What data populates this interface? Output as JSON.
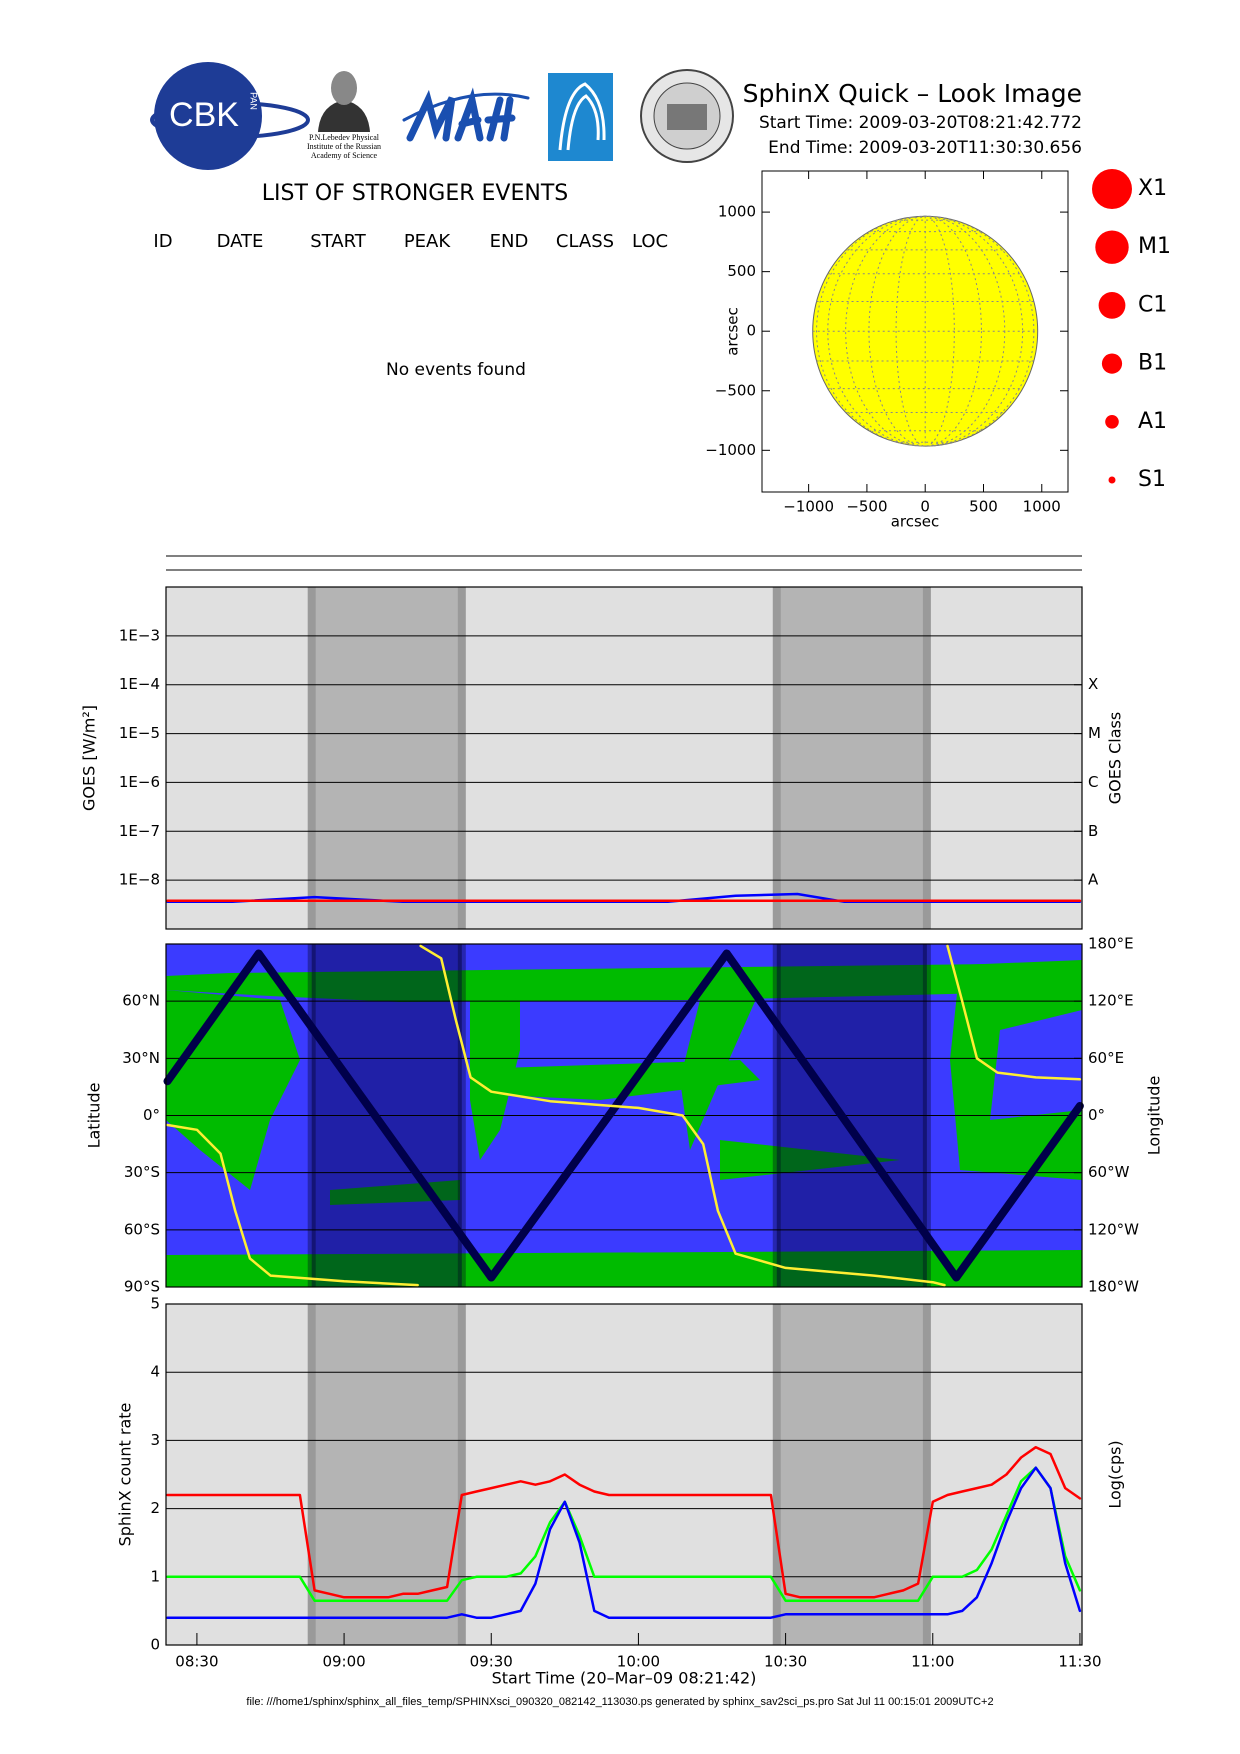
{
  "header": {
    "title": "SphinX Quick – Look Image",
    "start_time": "Start Time: 2009-03-20T08:21:42.772",
    "end_time": "End Time: 2009-03-20T11:30:30.656",
    "logos": {
      "cbk": "CBK",
      "pan": "PAN",
      "lebedev": [
        "P.N.Lebedev Physical",
        "Institute of the Russian",
        "Academy of Science"
      ]
    }
  },
  "events": {
    "title": "LIST OF STRONGER EVENTS",
    "columns": [
      "ID",
      "DATE",
      "START",
      "PEAK",
      "END",
      "CLASS",
      "LOC"
    ],
    "message": "No events found"
  },
  "footer": "file: ///home1/sphinx/sphinx_all_files_temp/SPHINXsci_090320_082142_113030.ps generated by sphinx_sav2sci_ps.pro Sat Jul 11 00:15:01 2009UTC+2",
  "chart_data": [
    {
      "type": "disk",
      "x_label": "arcsec",
      "y_label": "arcsec",
      "xlim": [
        -1400,
        1225
      ],
      "ylim": [
        -1350,
        1345
      ],
      "xticks": [
        {
          "value": -1000,
          "label": "−1000"
        },
        {
          "value": -500,
          "label": "−500"
        },
        0,
        500,
        1000
      ],
      "yticks": [
        1000,
        500,
        0,
        {
          "value": -500,
          "label": "−500"
        },
        {
          "value": -1000,
          "label": "−1000"
        }
      ],
      "disk_radius": 965,
      "disk_color": "#ffff00",
      "heliographic_grid": true,
      "legend": {
        "labels": [
          "X1",
          "M1",
          "C1",
          "B1",
          "A1",
          "S1"
        ],
        "color": "#ff0000"
      }
    },
    {
      "type": "line",
      "y_label": "GOES [W/m²]",
      "y2_label": "GOES Class",
      "log_scale": true,
      "grid": true,
      "xlim": [
        8.395,
        11.507
      ],
      "ylim": [
        1e-09,
        0.01
      ],
      "yticks": [
        {
          "value": 0.001,
          "label": "1E−3"
        },
        {
          "value": 0.0001,
          "label": "1E−4"
        },
        {
          "value": 1e-05,
          "label": "1E−5"
        },
        {
          "value": 1e-06,
          "label": "1E−6"
        },
        {
          "value": 1e-07,
          "label": "1E−7"
        },
        {
          "value": 1e-08,
          "label": "1E−8"
        }
      ],
      "y2lim": [
        1e-09,
        0.01
      ],
      "y2ticks": [
        {
          "value": 0.0001,
          "label": "X"
        },
        {
          "value": 1e-05,
          "label": "M"
        },
        {
          "value": 1e-06,
          "label": "C"
        },
        {
          "value": 1e-07,
          "label": "B"
        },
        {
          "value": 1e-08,
          "label": "A"
        }
      ],
      "shaded_intervals": [
        [
          8.89,
          9.4
        ],
        [
          10.47,
          10.98
        ]
      ],
      "x": [
        8.4,
        8.62,
        8.9,
        9.2,
        9.5,
        9.8,
        10.1,
        10.33,
        10.54,
        10.7,
        10.95,
        11.2,
        11.5
      ],
      "series": [
        {
          "color": "#0000ff",
          "values": [
            3.6e-09,
            3.6e-09,
            4.5e-09,
            3.6e-09,
            3.6e-09,
            3.6e-09,
            3.6e-09,
            4.8e-09,
            5.2e-09,
            3.6e-09,
            3.6e-09,
            3.6e-09,
            3.6e-09
          ]
        },
        {
          "color": "#ff0000",
          "values": [
            3.8e-09,
            3.8e-09,
            3.8e-09,
            3.8e-09,
            3.8e-09,
            3.8e-09,
            3.8e-09,
            3.8e-09,
            3.8e-09,
            3.8e-09,
            3.8e-09,
            3.8e-09,
            3.8e-09
          ]
        }
      ]
    },
    {
      "type": "orbit",
      "y_label": "Latitude",
      "y2_label": "Longitude",
      "grid": true,
      "xlim": [
        8.395,
        11.507
      ],
      "ylim": [
        -90,
        90
      ],
      "yticks": [
        {
          "value": 60,
          "label": "60°N"
        },
        {
          "value": 30,
          "label": "30°N"
        },
        {
          "value": 0,
          "label": "0°"
        },
        {
          "value": -30,
          "label": "30°S"
        },
        {
          "value": -60,
          "label": "60°S"
        },
        {
          "value": -90,
          "label": "90°S"
        }
      ],
      "y2lim": [
        -180,
        180
      ],
      "y2ticks": [
        {
          "value": 180,
          "label": "180°E"
        },
        {
          "value": 120,
          "label": "120°E"
        },
        {
          "value": 60,
          "label": "60°E"
        },
        {
          "value": 0,
          "label": "0°"
        },
        {
          "value": -60,
          "label": "60°W"
        },
        {
          "value": -120,
          "label": "120°W"
        },
        {
          "value": -180,
          "label": "180°W"
        }
      ],
      "shaded_intervals": [
        [
          8.89,
          9.4
        ],
        [
          10.47,
          10.98
        ]
      ],
      "series": [
        {
          "color": "#00004a",
          "x": [
            8.4,
            8.71,
            9.5,
            10.3,
            11.08,
            11.5
          ],
          "values": [
            18,
            85,
            -85,
            85,
            -85,
            5
          ]
        },
        {
          "color": "#ffee33",
          "axis": "y2",
          "x": [
            8.4,
            8.5,
            8.58,
            8.63,
            8.68,
            8.75,
            9.0,
            9.25,
            9.255,
            9.26,
            9.33,
            9.38,
            9.43,
            9.5,
            9.7,
            10.0,
            10.15,
            10.22,
            10.27,
            10.33,
            10.5,
            10.8,
            11.0,
            11.04,
            11.045,
            11.05,
            11.1,
            11.15,
            11.22,
            11.35,
            11.5
          ],
          "values": [
            -10,
            -15,
            -40,
            -100,
            -150,
            -168,
            -174,
            -178,
            null,
            178,
            165,
            100,
            40,
            25,
            15,
            8,
            0,
            -30,
            -100,
            -145,
            -160,
            -168,
            -175,
            -178,
            null,
            178,
            120,
            60,
            45,
            40,
            38
          ]
        }
      ]
    },
    {
      "type": "line",
      "y_label": "SphinX count rate",
      "y2_label": "Log(cps)",
      "x_label": "Start Time (20–Mar–09 08:21:42)",
      "grid": true,
      "xlim": [
        8.395,
        11.507
      ],
      "ylim": [
        0,
        5
      ],
      "yticks": [
        0,
        1,
        2,
        3,
        4,
        5
      ],
      "xticks": [
        {
          "value": 8.5,
          "label": "08:30"
        },
        {
          "value": 9,
          "label": "09:00"
        },
        {
          "value": 9.5,
          "label": "09:30"
        },
        {
          "value": 10,
          "label": "10:00"
        },
        {
          "value": 10.5,
          "label": "10:30"
        },
        {
          "value": 11,
          "label": "11:00"
        },
        {
          "value": 11.5,
          "label": "11:30"
        }
      ],
      "shaded_intervals": [
        [
          8.89,
          9.4
        ],
        [
          10.47,
          10.98
        ]
      ],
      "x": [
        8.4,
        8.45,
        8.5,
        8.55,
        8.6,
        8.65,
        8.7,
        8.75,
        8.8,
        8.85,
        8.9,
        8.95,
        9.0,
        9.05,
        9.1,
        9.15,
        9.2,
        9.25,
        9.3,
        9.35,
        9.4,
        9.45,
        9.5,
        9.55,
        9.6,
        9.65,
        9.7,
        9.75,
        9.8,
        9.85,
        9.9,
        9.95,
        10.0,
        10.05,
        10.1,
        10.15,
        10.2,
        10.25,
        10.3,
        10.35,
        10.4,
        10.45,
        10.5,
        10.55,
        10.6,
        10.65,
        10.7,
        10.75,
        10.8,
        10.85,
        10.9,
        10.95,
        11.0,
        11.05,
        11.1,
        11.15,
        11.2,
        11.25,
        11.3,
        11.35,
        11.4,
        11.45,
        11.5
      ],
      "series": [
        {
          "color": "#00ff00",
          "values": [
            1.0,
            1.0,
            1.0,
            1.0,
            1.0,
            1.0,
            1.0,
            1.0,
            1.0,
            1.0,
            0.65,
            0.65,
            0.65,
            0.65,
            0.65,
            0.65,
            0.65,
            0.65,
            0.65,
            0.65,
            0.95,
            1.0,
            1.0,
            1.0,
            1.05,
            1.3,
            1.8,
            2.1,
            1.6,
            1.0,
            1.0,
            1.0,
            1.0,
            1.0,
            1.0,
            1.0,
            1.0,
            1.0,
            1.0,
            1.0,
            1.0,
            1.0,
            0.65,
            0.65,
            0.65,
            0.65,
            0.65,
            0.65,
            0.65,
            0.65,
            0.65,
            0.65,
            1.0,
            1.0,
            1.0,
            1.1,
            1.4,
            1.9,
            2.4,
            2.6,
            2.3,
            1.3,
            0.8
          ]
        },
        {
          "color": "#0000ff",
          "values": [
            0.4,
            0.4,
            0.4,
            0.4,
            0.4,
            0.4,
            0.4,
            0.4,
            0.4,
            0.4,
            0.4,
            0.4,
            0.4,
            0.4,
            0.4,
            0.4,
            0.4,
            0.4,
            0.4,
            0.4,
            0.45,
            0.4,
            0.4,
            0.45,
            0.5,
            0.9,
            1.7,
            2.1,
            1.5,
            0.5,
            0.4,
            0.4,
            0.4,
            0.4,
            0.4,
            0.4,
            0.4,
            0.4,
            0.4,
            0.4,
            0.4,
            0.4,
            0.45,
            0.45,
            0.45,
            0.45,
            0.45,
            0.45,
            0.45,
            0.45,
            0.45,
            0.45,
            0.45,
            0.45,
            0.5,
            0.7,
            1.2,
            1.8,
            2.3,
            2.6,
            2.3,
            1.2,
            0.5
          ]
        },
        {
          "color": "#ff0000",
          "values": [
            2.2,
            2.2,
            2.2,
            2.2,
            2.2,
            2.2,
            2.2,
            2.2,
            2.2,
            2.2,
            0.8,
            0.75,
            0.7,
            0.7,
            0.7,
            0.7,
            0.75,
            0.75,
            0.8,
            0.85,
            2.2,
            2.25,
            2.3,
            2.35,
            2.4,
            2.35,
            2.4,
            2.5,
            2.35,
            2.25,
            2.2,
            2.2,
            2.2,
            2.2,
            2.2,
            2.2,
            2.2,
            2.2,
            2.2,
            2.2,
            2.2,
            2.2,
            0.75,
            0.7,
            0.7,
            0.7,
            0.7,
            0.7,
            0.7,
            0.75,
            0.8,
            0.9,
            2.1,
            2.2,
            2.25,
            2.3,
            2.35,
            2.5,
            2.75,
            2.9,
            2.8,
            2.3,
            2.15
          ]
        }
      ]
    }
  ]
}
